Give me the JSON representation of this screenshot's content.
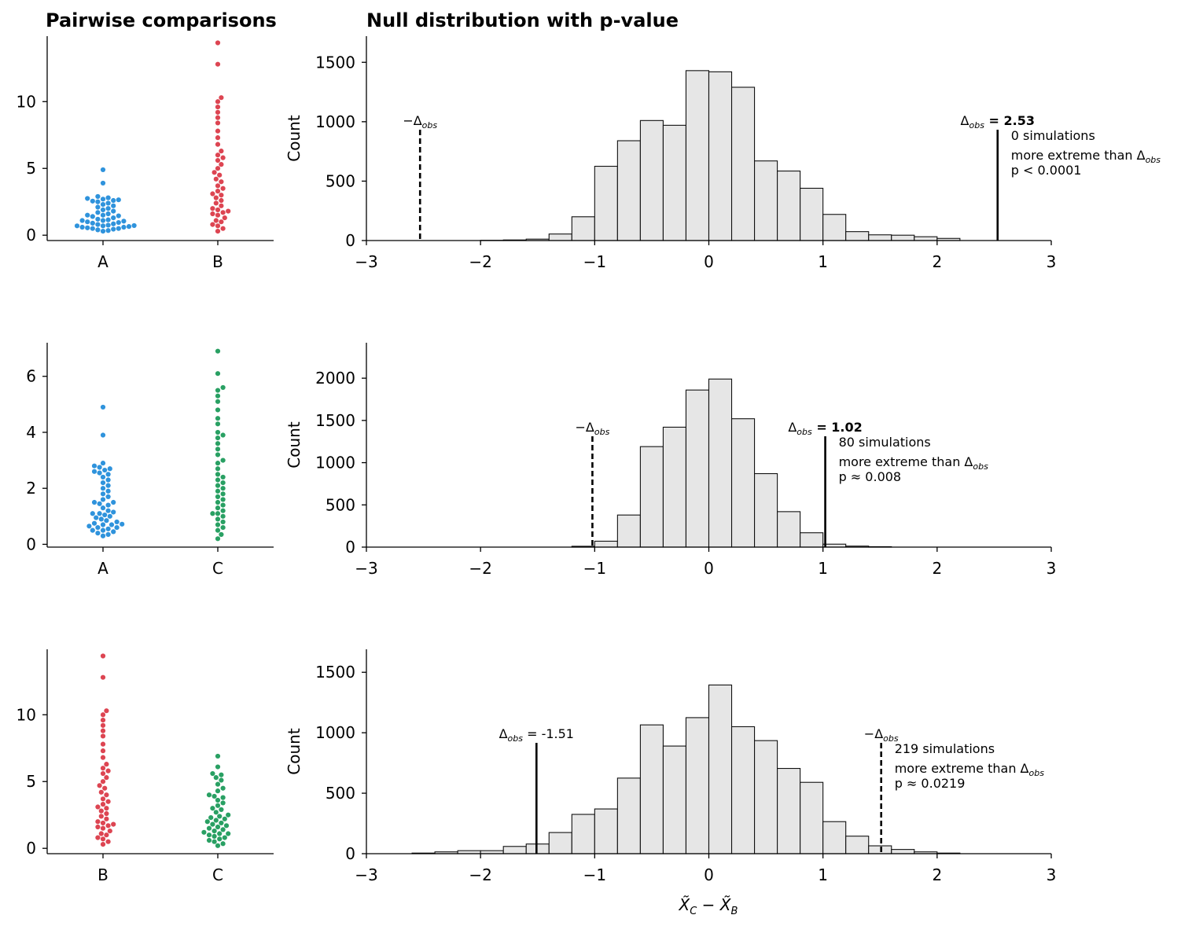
{
  "titles": {
    "left": "Pairwise comparisons",
    "right": "Null distribution with p-value"
  },
  "colors": {
    "A": "#2f93dc",
    "B": "#dd4552",
    "C": "#29a063",
    "bar_fill": "#e6e6e6"
  },
  "chart_data": [
    {
      "type": "scatter",
      "subtype": "swarm",
      "categories": [
        "A",
        "B"
      ],
      "ylim": [
        -0.4,
        14.9
      ],
      "yticks": [
        0,
        5,
        10
      ],
      "series": [
        {
          "group": "A",
          "values": [
            0.3,
            0.35,
            0.4,
            0.45,
            0.5,
            0.5,
            0.55,
            0.6,
            0.6,
            0.65,
            0.7,
            0.7,
            0.72,
            0.75,
            0.8,
            0.85,
            0.9,
            0.95,
            1.0,
            1.05,
            1.1,
            1.1,
            1.15,
            1.2,
            1.3,
            1.4,
            1.45,
            1.5,
            1.5,
            1.6,
            1.7,
            1.8,
            1.9,
            2.0,
            2.1,
            2.2,
            2.3,
            2.4,
            2.5,
            2.55,
            2.6,
            2.65,
            2.7,
            2.75,
            2.8,
            2.9,
            3.9,
            4.9
          ]
        },
        {
          "group": "B",
          "values": [
            0.3,
            0.5,
            0.7,
            0.8,
            1.0,
            1.1,
            1.3,
            1.5,
            1.6,
            1.7,
            1.8,
            1.9,
            2.0,
            2.2,
            2.4,
            2.6,
            2.8,
            3.0,
            3.1,
            3.3,
            3.5,
            3.7,
            4.0,
            4.2,
            4.5,
            4.7,
            5.0,
            5.3,
            5.6,
            5.8,
            6.0,
            6.3,
            6.8,
            7.3,
            7.8,
            8.4,
            8.8,
            9.2,
            9.6,
            10.0,
            10.3,
            12.8,
            14.4
          ]
        }
      ]
    },
    {
      "type": "bar",
      "subtype": "histogram",
      "xlabel": "",
      "ylabel": "Count",
      "xlim": [
        -3,
        3
      ],
      "ylim": [
        0,
        1720
      ],
      "yticks": [
        0,
        500,
        1000,
        1500
      ],
      "xticks": [
        -3,
        -2,
        -1,
        0,
        1,
        2,
        3
      ],
      "bin_width": 0.2,
      "bin_starts": [
        -2.0,
        -1.8,
        -1.6,
        -1.4,
        -1.2,
        -1.0,
        -0.8,
        -0.6,
        -0.4,
        -0.2,
        0.0,
        0.2,
        0.4,
        0.6,
        0.8,
        1.0,
        1.2,
        1.4,
        1.6,
        1.8,
        2.0
      ],
      "values": [
        2,
        5,
        12,
        55,
        200,
        625,
        840,
        1010,
        970,
        1430,
        1420,
        1290,
        670,
        585,
        440,
        220,
        75,
        48,
        45,
        32,
        18
      ],
      "observed": 2.53,
      "observed_label_prefix": "Δ",
      "observed_label_sub": "obs",
      "observed_label_value": " = 2.53",
      "neg_label_prefix": "−Δ",
      "neg_label_sub": "obs",
      "summary_line1": "0 simulations",
      "summary_line2_text": "more extreme than Δ",
      "summary_line2_sub": "obs",
      "summary_line3": "p < 0.0001"
    },
    {
      "type": "scatter",
      "subtype": "swarm",
      "categories": [
        "A",
        "C"
      ],
      "ylim": [
        -0.1,
        7.2
      ],
      "yticks": [
        0,
        2,
        4,
        6
      ],
      "series": [
        {
          "group": "A",
          "values": [
            0.3,
            0.35,
            0.4,
            0.45,
            0.5,
            0.5,
            0.55,
            0.6,
            0.6,
            0.65,
            0.7,
            0.7,
            0.72,
            0.75,
            0.8,
            0.85,
            0.9,
            0.95,
            1.0,
            1.05,
            1.1,
            1.1,
            1.15,
            1.2,
            1.3,
            1.4,
            1.45,
            1.5,
            1.5,
            1.6,
            1.7,
            1.8,
            1.9,
            2.0,
            2.1,
            2.2,
            2.3,
            2.4,
            2.5,
            2.55,
            2.6,
            2.65,
            2.7,
            2.75,
            2.8,
            2.9,
            3.9,
            4.9
          ]
        },
        {
          "group": "C",
          "values": [
            0.2,
            0.35,
            0.5,
            0.6,
            0.7,
            0.8,
            0.9,
            1.0,
            1.1,
            1.1,
            1.2,
            1.3,
            1.4,
            1.5,
            1.6,
            1.7,
            1.8,
            1.9,
            2.0,
            2.1,
            2.2,
            2.3,
            2.4,
            2.5,
            2.7,
            2.9,
            3.0,
            3.2,
            3.4,
            3.6,
            3.8,
            3.9,
            4.0,
            4.3,
            4.5,
            4.8,
            5.1,
            5.3,
            5.5,
            5.6,
            6.1,
            6.9
          ]
        }
      ]
    },
    {
      "type": "bar",
      "subtype": "histogram",
      "xlabel": "",
      "ylabel": "Count",
      "xlim": [
        -3,
        3
      ],
      "ylim": [
        0,
        2420
      ],
      "yticks": [
        0,
        500,
        1000,
        1500,
        2000
      ],
      "xticks": [
        -3,
        -2,
        -1,
        0,
        1,
        2,
        3
      ],
      "bin_width": 0.2,
      "bin_starts": [
        -1.2,
        -1.0,
        -0.8,
        -0.6,
        -0.4,
        -0.2,
        0.0,
        0.2,
        0.4,
        0.6,
        0.8,
        1.0,
        1.2,
        1.4
      ],
      "values": [
        10,
        70,
        380,
        1190,
        1420,
        1860,
        1990,
        1520,
        870,
        420,
        170,
        35,
        12,
        5
      ],
      "observed": 1.02,
      "observed_label_prefix": "Δ",
      "observed_label_sub": "obs",
      "observed_label_value": " = 1.02",
      "neg_label_prefix": "−Δ",
      "neg_label_sub": "obs",
      "summary_line1": "80 simulations",
      "summary_line2_text": "more extreme than Δ",
      "summary_line2_sub": "obs",
      "summary_line3": "p ≈ 0.008"
    },
    {
      "type": "scatter",
      "subtype": "swarm",
      "categories": [
        "B",
        "C"
      ],
      "ylim": [
        -0.4,
        14.9
      ],
      "yticks": [
        0,
        5,
        10
      ],
      "series": [
        {
          "group": "B",
          "values": [
            0.3,
            0.5,
            0.7,
            0.8,
            1.0,
            1.1,
            1.3,
            1.5,
            1.6,
            1.7,
            1.8,
            1.9,
            2.0,
            2.2,
            2.4,
            2.6,
            2.8,
            3.0,
            3.1,
            3.3,
            3.5,
            3.7,
            4.0,
            4.2,
            4.5,
            4.7,
            5.0,
            5.3,
            5.6,
            5.8,
            6.0,
            6.3,
            6.8,
            7.3,
            7.8,
            8.4,
            8.8,
            9.2,
            9.6,
            10.0,
            10.3,
            12.8,
            14.4
          ]
        },
        {
          "group": "C",
          "values": [
            0.2,
            0.35,
            0.5,
            0.6,
            0.7,
            0.8,
            0.9,
            1.0,
            1.1,
            1.1,
            1.2,
            1.3,
            1.4,
            1.5,
            1.6,
            1.7,
            1.8,
            1.9,
            2.0,
            2.1,
            2.2,
            2.3,
            2.4,
            2.5,
            2.7,
            2.9,
            3.0,
            3.2,
            3.4,
            3.6,
            3.8,
            3.9,
            4.0,
            4.3,
            4.5,
            4.8,
            5.1,
            5.3,
            5.5,
            5.6,
            6.1,
            6.9
          ]
        }
      ]
    },
    {
      "type": "bar",
      "subtype": "histogram",
      "xlabel": "X̃C − X̃B",
      "ylabel": "Count",
      "xlim": [
        -3,
        3
      ],
      "ylim": [
        0,
        1690
      ],
      "yticks": [
        0,
        500,
        1000,
        1500
      ],
      "xticks": [
        -3,
        -2,
        -1,
        0,
        1,
        2,
        3
      ],
      "bin_width": 0.2,
      "bin_starts": [
        -2.6,
        -2.4,
        -2.2,
        -2.0,
        -1.8,
        -1.6,
        -1.4,
        -1.2,
        -1.0,
        -0.8,
        -0.6,
        -0.4,
        -0.2,
        0.0,
        0.2,
        0.4,
        0.6,
        0.8,
        1.0,
        1.2,
        1.4,
        1.6,
        1.8,
        2.0
      ],
      "values": [
        5,
        15,
        25,
        25,
        60,
        80,
        175,
        325,
        370,
        625,
        1065,
        890,
        1125,
        1395,
        1050,
        935,
        705,
        590,
        265,
        145,
        65,
        35,
        15,
        5
      ],
      "observed": -1.51,
      "observed_label_prefix": "Δ",
      "observed_label_sub": "obs",
      "observed_label_value": " = -1.51",
      "neg_label_prefix": "−Δ",
      "neg_label_sub": "obs",
      "summary_line1": "219 simulations",
      "summary_line2_text": "more extreme than Δ",
      "summary_line2_sub": "obs",
      "summary_line3": "p ≈ 0.0219"
    }
  ]
}
